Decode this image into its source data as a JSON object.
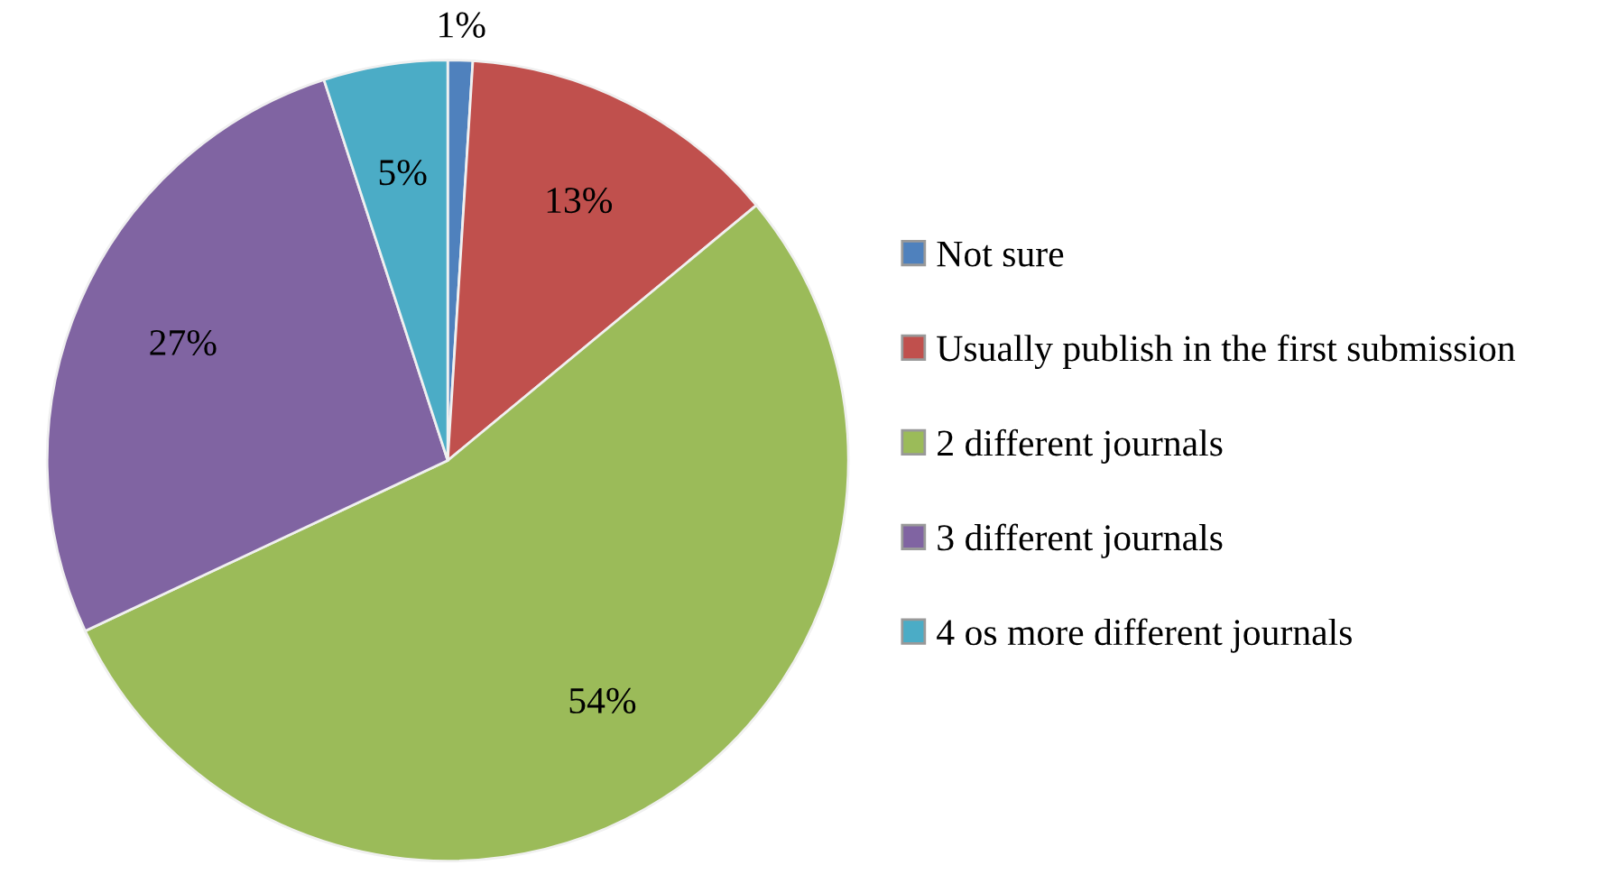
{
  "chart_data": {
    "type": "pie",
    "categories": [
      "Not sure",
      "Usually publish in the first submission",
      "2 different journals",
      "3 different journals",
      "4 os more different journals"
    ],
    "values": [
      1,
      13,
      54,
      27,
      5
    ],
    "value_labels": [
      "1%",
      "13%",
      "54%",
      "27%",
      "5%"
    ],
    "colors": [
      "#4f81bd",
      "#c0504d",
      "#9bbb59",
      "#8064a2",
      "#4bacc6"
    ],
    "legend": "right"
  }
}
